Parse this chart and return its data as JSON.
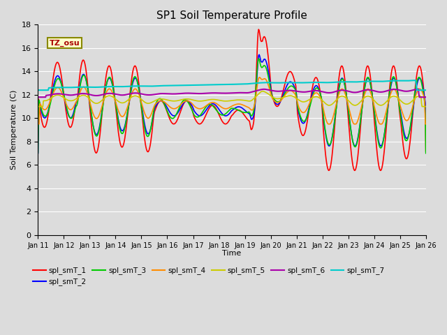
{
  "title": "SP1 Soil Temperature Profile",
  "xlabel": "Time",
  "ylabel": "Soil Temperature (C)",
  "ylim": [
    0,
    18
  ],
  "yticks": [
    0,
    2,
    4,
    6,
    8,
    10,
    12,
    14,
    16,
    18
  ],
  "x_labels": [
    "Jan 11",
    "Jan 12",
    "Jan 13",
    "Jan 14",
    "Jan 15",
    "Jan 16",
    "Jan 17",
    "Jan 18",
    "Jan 19",
    "Jan 20",
    "Jan 21",
    "Jan 22",
    "Jan 23",
    "Jan 24",
    "Jan 25",
    "Jan 26"
  ],
  "tz_label": "TZ_osu",
  "series_colors": {
    "spl_smT_1": "#FF0000",
    "spl_smT_2": "#0000FF",
    "spl_smT_3": "#00CC00",
    "spl_smT_4": "#FF8C00",
    "spl_smT_5": "#CCCC00",
    "spl_smT_6": "#AA00AA",
    "spl_smT_7": "#00CCCC"
  },
  "plot_bg_color": "#DCDCDC",
  "fig_bg_color": "#DCDCDC",
  "grid_color": "#FFFFFF",
  "figsize": [
    6.4,
    4.8
  ],
  "dpi": 100
}
